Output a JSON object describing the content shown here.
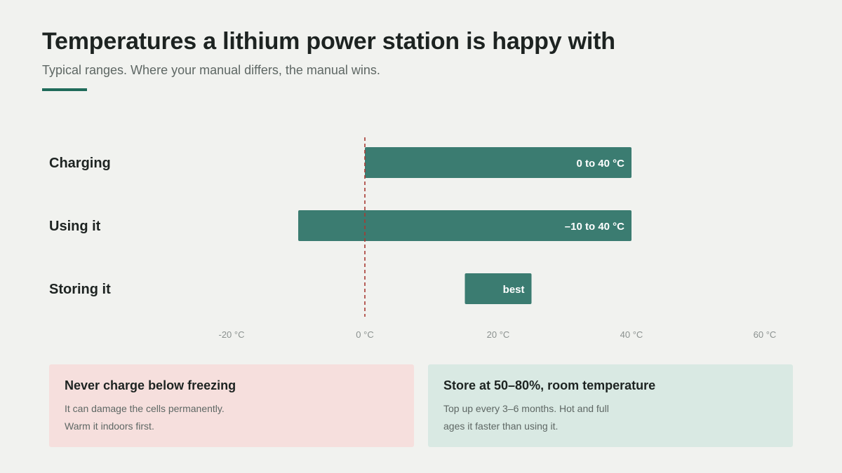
{
  "header": {
    "title": "Temperatures a lithium power station is happy with",
    "subtitle": "Typical ranges. Where your manual differs, the manual wins."
  },
  "chart_data": {
    "type": "bar",
    "orientation": "horizontal-range",
    "x_unit": "°C",
    "xlim": [
      -20,
      60
    ],
    "ticks": [
      {
        "value": -20,
        "label": "-20 °C"
      },
      {
        "value": 0,
        "label": "0 °C"
      },
      {
        "value": 20,
        "label": "20 °C"
      },
      {
        "value": 40,
        "label": "40 °C"
      },
      {
        "value": 60,
        "label": "60 °C"
      }
    ],
    "categories": [
      "Charging",
      "Using it",
      "Storing it"
    ],
    "ranges": [
      {
        "category": "Charging",
        "start": 0,
        "end": 40,
        "label": "0 to 40 °C"
      },
      {
        "category": "Using it",
        "start": -10,
        "end": 40,
        "label": "–10 to 40 °C"
      },
      {
        "category": "Storing it",
        "start": 15,
        "end": 25,
        "label": "best"
      }
    ],
    "reference_line": {
      "value": 0,
      "style": "dashed"
    },
    "grid": false,
    "colors": {
      "bar": "#3b7c71",
      "reference": "#a83a32"
    }
  },
  "notes": {
    "left": {
      "title": "Never charge below freezing",
      "lines": [
        "It can damage the cells permanently.",
        "Warm it indoors first."
      ]
    },
    "right": {
      "title": "Store at 50–80%, room temperature",
      "lines": [
        "Top up every 3–6 months. Hot and full",
        "ages it faster than using it."
      ]
    }
  }
}
